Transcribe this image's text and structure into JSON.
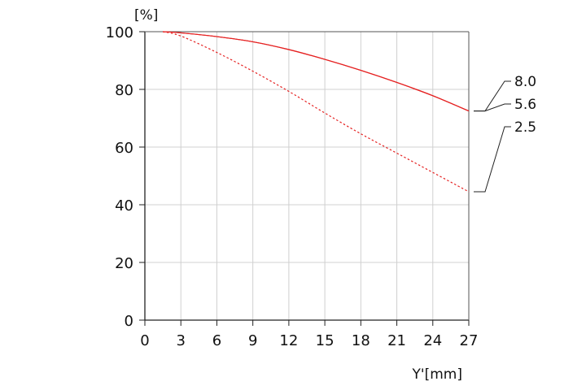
{
  "chart_data": {
    "type": "line",
    "y_unit_label": "[%]",
    "xlabel": "Y'[mm]",
    "xlim": [
      0,
      27
    ],
    "ylim": [
      0,
      100
    ],
    "x_ticks": [
      "0",
      "3",
      "6",
      "9",
      "12",
      "15",
      "18",
      "21",
      "24",
      "27"
    ],
    "y_ticks": [
      "0",
      "20",
      "40",
      "60",
      "80",
      "100"
    ],
    "grid": true,
    "series": [
      {
        "name": "8.0",
        "style": "solid",
        "color": "#e52222",
        "x": [
          1.5,
          3,
          6,
          9,
          12,
          15,
          18,
          21,
          24,
          27
        ],
        "y": [
          100,
          99.6,
          98.3,
          96.5,
          93.8,
          90.4,
          86.6,
          82.4,
          77.8,
          72.5
        ]
      },
      {
        "name": "5.6",
        "style": "solid",
        "color": "#e52222",
        "x": [
          1.5,
          3,
          6,
          9,
          12,
          15,
          18,
          21,
          24,
          27
        ],
        "y": [
          100,
          99.6,
          98.3,
          96.5,
          93.8,
          90.4,
          86.6,
          82.4,
          77.8,
          72.5
        ]
      },
      {
        "name": "2.5",
        "style": "dotted",
        "color": "#e52222",
        "x": [
          1.5,
          3,
          6,
          9,
          12,
          15,
          18,
          21,
          24,
          27
        ],
        "y": [
          100,
          98.5,
          92.8,
          86.3,
          79.3,
          71.8,
          64.6,
          57.9,
          51.2,
          44.5
        ]
      }
    ]
  }
}
